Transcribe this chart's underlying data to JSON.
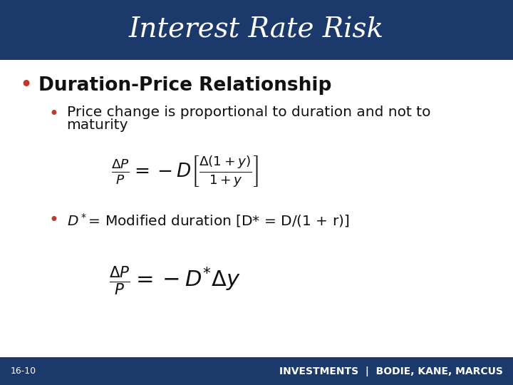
{
  "title": "Interest Rate Risk",
  "title_bg_color": "#1B3A6B",
  "title_text_color": "#FFFFFF",
  "slide_bg_color": "#FFFFFF",
  "bullet1": "Duration-Price Relationship",
  "bullet2_line1": "Price change is proportional to duration and not to",
  "bullet2_line2": "maturity",
  "bullet3_text": "= Modified duration [D* = D/(1 + r)]",
  "footer_bg_color": "#1B3A6B",
  "footer_left": "16-10",
  "footer_right": "INVESTMENTS  |  BODIE, KANE, MARCUS",
  "footer_text_color": "#FFFFFF",
  "bullet_color": "#C0392B"
}
